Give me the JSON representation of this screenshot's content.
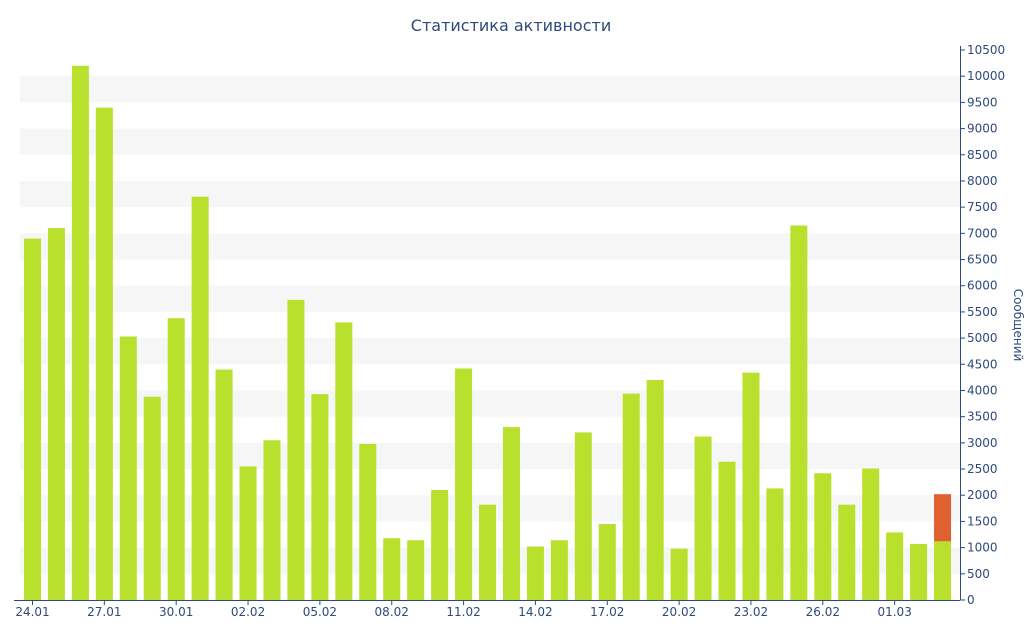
{
  "chart_data": {
    "type": "bar",
    "title": "Статистика активности",
    "ylabel": "Сообщений",
    "ylim": [
      0,
      10500
    ],
    "y_ticks": [
      0,
      500,
      1000,
      1500,
      2000,
      2500,
      3000,
      3500,
      4000,
      4500,
      5000,
      5500,
      6000,
      6500,
      7000,
      7500,
      8000,
      8500,
      9000,
      9500,
      10000,
      10500
    ],
    "y_axis_side": "right",
    "grid": "alternating horizontal bands",
    "x_tick_labels": [
      "24.01",
      "27.01",
      "30.01",
      "02.02",
      "05.02",
      "08.02",
      "11.02",
      "14.02",
      "17.02",
      "20.02",
      "23.02",
      "26.02",
      "01.03"
    ],
    "x_tick_every": 3,
    "categories": [
      "24.01",
      "25.01",
      "26.01",
      "27.01",
      "28.01",
      "29.01",
      "30.01",
      "31.01",
      "01.02",
      "02.02",
      "03.02",
      "04.02",
      "05.02",
      "06.02",
      "07.02",
      "08.02",
      "09.02",
      "10.02",
      "11.02",
      "12.02",
      "13.02",
      "14.02",
      "15.02",
      "16.02",
      "17.02",
      "18.02",
      "19.02",
      "20.02",
      "21.02",
      "22.02",
      "23.02",
      "24.02",
      "25.02",
      "26.02",
      "27.02",
      "28.02",
      "29.02",
      "01.03",
      "02.03"
    ],
    "series": [
      {
        "color": "#b8e02c",
        "values": [
          6900,
          7100,
          10200,
          9400,
          5030,
          3880,
          5380,
          7700,
          4400,
          2550,
          3050,
          5730,
          3930,
          5300,
          2980,
          1180,
          1140,
          2100,
          4420,
          1820,
          3300,
          1020,
          1140,
          3200,
          1450,
          3940,
          4200,
          980,
          3120,
          2640,
          4340,
          2130,
          7150,
          2420,
          1820,
          2510,
          1290,
          1070,
          1120
        ]
      },
      {
        "color": "#e06030",
        "values": [
          0,
          0,
          0,
          0,
          0,
          0,
          0,
          0,
          0,
          0,
          0,
          0,
          0,
          0,
          0,
          0,
          0,
          0,
          0,
          0,
          0,
          0,
          0,
          0,
          0,
          0,
          0,
          0,
          0,
          0,
          0,
          0,
          0,
          0,
          0,
          0,
          0,
          0,
          900
        ]
      }
    ]
  }
}
